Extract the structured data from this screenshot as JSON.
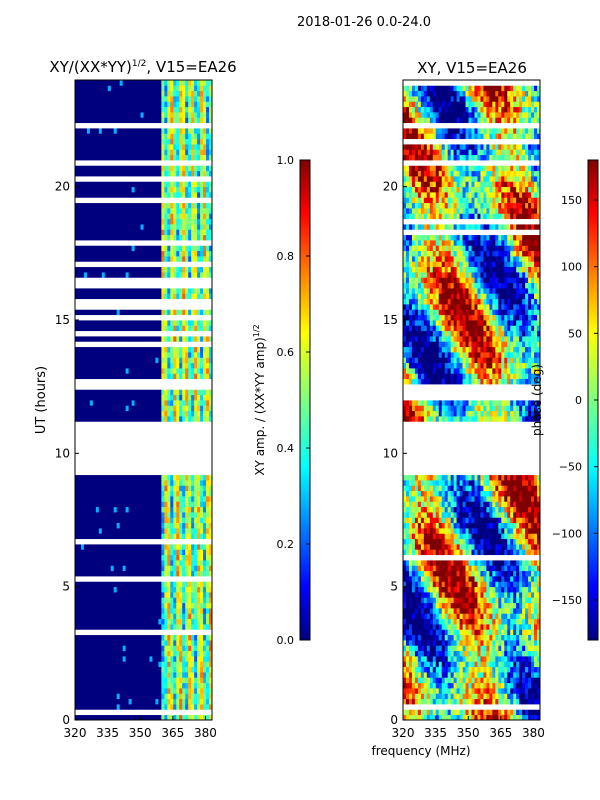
{
  "suptitle": "2018-01-26 0.0-24.0",
  "xlabel": "frequency (MHz)",
  "colors": {
    "gap_white": "#ffffff",
    "jet": [
      "#00007f",
      "#0000ff",
      "#007fff",
      "#00ffff",
      "#7fff7f",
      "#ffff00",
      "#ff7f00",
      "#ff0000",
      "#7f0000"
    ]
  },
  "chart_data": [
    {
      "type": "heatmap",
      "title_main": "XY/(XX*YY)",
      "title_sup": "1/2",
      "title_tail": ", V15=EA26",
      "ylabel": "UT (hours)",
      "xlim": [
        320,
        383
      ],
      "ylim": [
        0,
        24
      ],
      "xticks": [
        320,
        335,
        350,
        365,
        380
      ],
      "yticks": [
        0,
        5,
        10,
        15,
        20
      ],
      "data_gap_hours": [
        9.1,
        11.2
      ],
      "active_band_mhz": [
        360,
        383
      ],
      "colorbar": {
        "label_main": "XY amp. / (XX*YY amp)",
        "label_sup": "1/2",
        "range": [
          0.0,
          1.0
        ],
        "ticks": [
          "0.0",
          "0.2",
          "0.4",
          "0.6",
          "0.8",
          "1.0"
        ]
      }
    },
    {
      "type": "heatmap",
      "title_main": "XY, V15=EA26",
      "ylabel": "",
      "xlim": [
        320,
        383
      ],
      "ylim": [
        0,
        24
      ],
      "xticks": [
        320,
        335,
        350,
        365,
        380
      ],
      "yticks": [
        0,
        5,
        10,
        15,
        20
      ],
      "data_gap_hours": [
        9.1,
        11.2
      ],
      "colorbar": {
        "label_main": "phase (deg)",
        "range": [
          -180,
          180
        ],
        "ticks": [
          "-150",
          "-100",
          "-50",
          "0",
          "50",
          "100",
          "150"
        ]
      }
    }
  ]
}
